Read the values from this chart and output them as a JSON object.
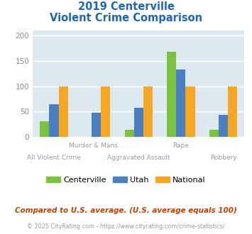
{
  "title_line1": "2019 Centerville",
  "title_line2": "Violent Crime Comparison",
  "categories": [
    "All Violent Crime",
    "Murder & Mans...",
    "Aggravated Assault",
    "Rape",
    "Robbery"
  ],
  "series": {
    "Centerville": [
      31,
      0,
      14,
      168,
      14
    ],
    "Utah": [
      64,
      47,
      58,
      133,
      44
    ],
    "National": [
      100,
      100,
      100,
      100,
      100
    ]
  },
  "colors": {
    "Centerville": "#7dc23e",
    "Utah": "#4a7fc1",
    "National": "#f5a623"
  },
  "ylim": [
    0,
    210
  ],
  "yticks": [
    0,
    50,
    100,
    150,
    200
  ],
  "bg_color": "#dce9f0",
  "fig_bg_color": "#ffffff",
  "title_color": "#2166b0",
  "footnote1": "Compared to U.S. average. (U.S. average equals 100)",
  "footnote2": "© 2025 CityRating.com - https://www.cityrating.com/crime-statistics/",
  "footnote1_color": "#c04000",
  "footnote2_color": "#999999",
  "bar_width": 0.22,
  "legend_entries": [
    "Centerville",
    "Utah",
    "National"
  ],
  "cat_labels_top": [
    "",
    "Murder & Mans...",
    "",
    "Rape",
    ""
  ],
  "cat_labels_bot": [
    "All Violent Crime",
    "",
    "Aggravated Assault",
    "",
    "Robbery"
  ]
}
